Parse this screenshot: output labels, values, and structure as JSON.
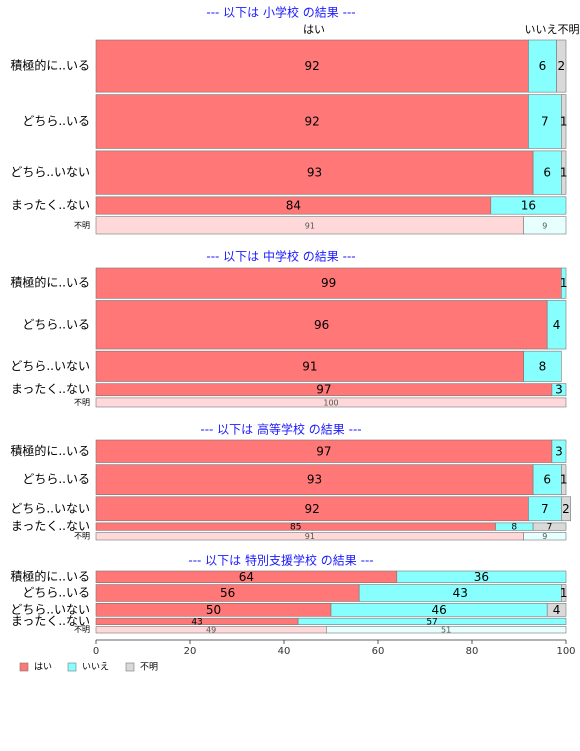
{
  "colors": {
    "yes": "#ff7777",
    "no": "#88ffff",
    "unknown": "#d9d9d9",
    "title": "#1a1aff",
    "unknown_row_yes": "#ffd9d9",
    "unknown_row_no": "#e6ffff"
  },
  "column_labels": {
    "yes": "はい",
    "no": "いいえ",
    "unknown": "不明"
  },
  "legend": [
    {
      "key": "yes",
      "label": "はい"
    },
    {
      "key": "no",
      "label": "いいえ"
    },
    {
      "key": "unknown",
      "label": "不明"
    }
  ],
  "chart_data": {
    "type": "bar",
    "orientation": "horizontal",
    "stacked": true,
    "xlim": [
      0,
      100
    ],
    "xticks": [
      "0",
      "20",
      "40",
      "60",
      "80",
      "100"
    ],
    "series": [
      {
        "name": "はい"
      },
      {
        "name": "いいえ"
      },
      {
        "name": "不明"
      }
    ],
    "panels": [
      {
        "title": "--- 以下は 小学校 の結果 ---",
        "show_column_labels": true,
        "rows": [
          {
            "label": "積極的に..いる",
            "weight": 3.0,
            "values": [
              92,
              6,
              2
            ]
          },
          {
            "label": "どちら..いる",
            "weight": 3.1,
            "values": [
              92,
              7,
              1
            ]
          },
          {
            "label": "どちら..いない",
            "weight": 2.5,
            "values": [
              93,
              6,
              1
            ]
          },
          {
            "label": "まったく..ない",
            "weight": 1.0,
            "values": [
              84,
              16,
              0
            ]
          },
          {
            "label": "不明",
            "weight": 1.0,
            "values": [
              91,
              9,
              0
            ],
            "unknown_row": true
          }
        ]
      },
      {
        "title": "--- 以下は 中学校 の結果 ---",
        "rows": [
          {
            "label": "積極的に..いる",
            "weight": 2.0,
            "values": [
              99,
              1,
              0
            ]
          },
          {
            "label": "どちら..いる",
            "weight": 3.2,
            "values": [
              96,
              4,
              0
            ]
          },
          {
            "label": "どちら..いない",
            "weight": 2.0,
            "values": [
              91,
              8,
              0
            ]
          },
          {
            "label": "まったく..ない",
            "weight": 0.8,
            "values": [
              97,
              3,
              0
            ]
          },
          {
            "label": "不明",
            "weight": 0.6,
            "values": [
              100,
              0,
              0
            ],
            "unknown_row": true
          }
        ]
      },
      {
        "title": "--- 以下は 高等学校 の結果 ---",
        "rows": [
          {
            "label": "積極的に..いる",
            "weight": 1.5,
            "values": [
              97,
              3,
              0
            ]
          },
          {
            "label": "どちら..いる",
            "weight": 2.0,
            "values": [
              93,
              6,
              1
            ]
          },
          {
            "label": "どちら..いない",
            "weight": 1.6,
            "values": [
              92,
              7,
              2
            ]
          },
          {
            "label": "まったく..ない",
            "weight": 0.5,
            "values": [
              85,
              8,
              7
            ]
          },
          {
            "label": "不明",
            "weight": 0.5,
            "values": [
              91,
              9,
              0
            ],
            "unknown_row": true
          }
        ]
      },
      {
        "title": "--- 以下は 特別支援学校 の結果 ---",
        "rows": [
          {
            "label": "積極的に..いる",
            "weight": 0.9,
            "values": [
              64,
              36,
              0
            ]
          },
          {
            "label": "どちら..いる",
            "weight": 1.3,
            "values": [
              56,
              43,
              1
            ]
          },
          {
            "label": "どちら..いない",
            "weight": 1.0,
            "values": [
              50,
              46,
              4
            ]
          },
          {
            "label": "まったく..ない",
            "weight": 0.5,
            "values": [
              43,
              57,
              0
            ]
          },
          {
            "label": "不明",
            "weight": 0.5,
            "values": [
              49,
              51,
              0
            ],
            "unknown_row": true
          }
        ]
      }
    ]
  }
}
